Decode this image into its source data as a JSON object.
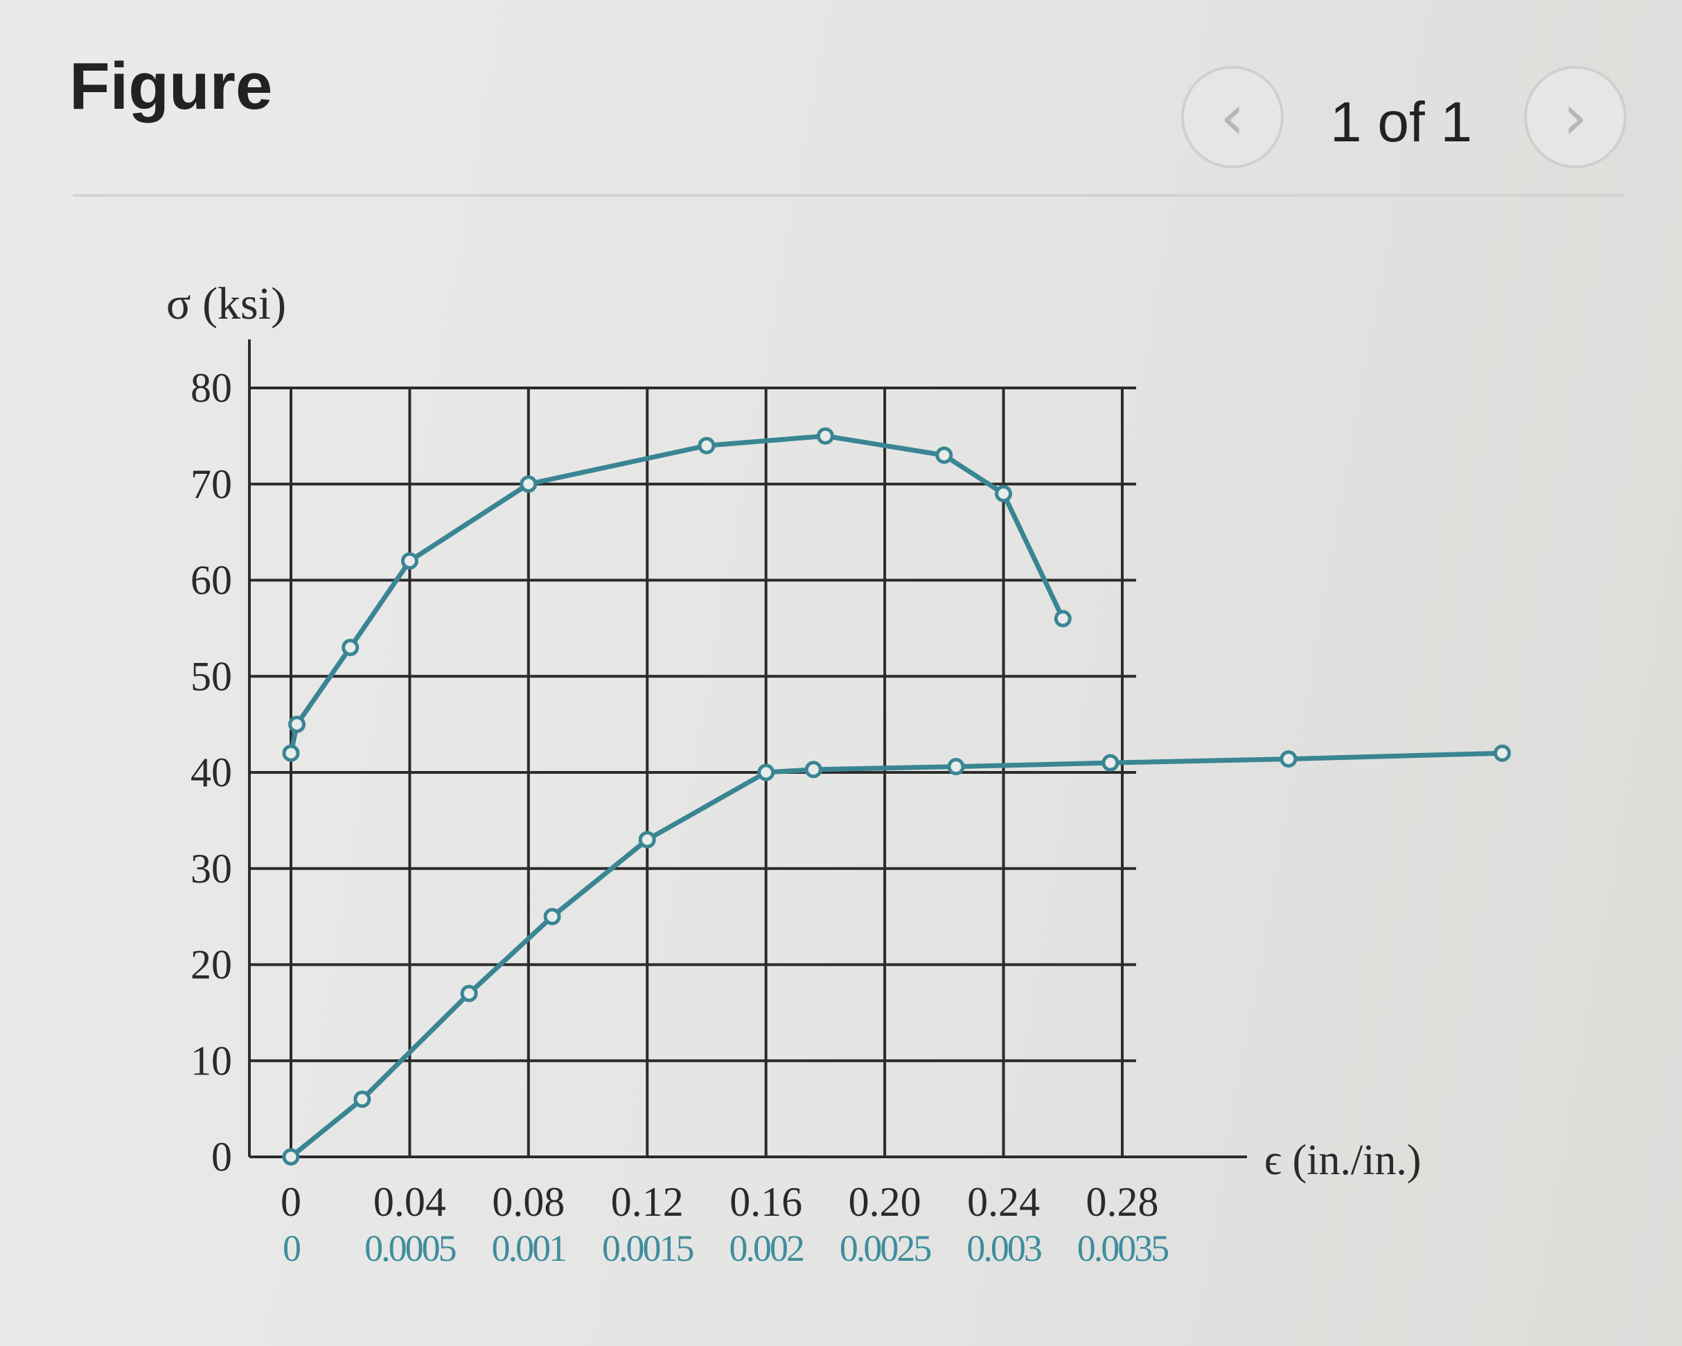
{
  "header": {
    "title": "Figure",
    "page_indicator": "1 of 1",
    "prev_icon": "chevron-left-icon",
    "next_icon": "chevron-right-icon"
  },
  "colors": {
    "curve": "#3a8593",
    "grid": "#2b2b2b",
    "secondary_tick": "#3f8d9c"
  },
  "chart_data": {
    "type": "line",
    "ylabel": "σ (ksi)",
    "xlabel": "ϵ (in./in.)",
    "ylim": [
      0,
      80
    ],
    "yticks": [
      "80",
      "70",
      "60",
      "50",
      "40",
      "30",
      "20",
      "10",
      "0"
    ],
    "xlim_top_axis": [
      0,
      0.28
    ],
    "xticks_top": [
      "0",
      "0.04",
      "0.08",
      "0.12",
      "0.16",
      "0.20",
      "0.24",
      "0.28"
    ],
    "xlim_bottom_axis": [
      0,
      0.0035
    ],
    "xticks_bottom": [
      "0",
      "0.0005",
      "0.001",
      "0.0015",
      "0.002",
      "0.0025",
      "0.003",
      "0.0035"
    ],
    "grid": true,
    "series": [
      {
        "axis": "bottom",
        "points": [
          [
            0,
            0
          ],
          [
            0.0003,
            6
          ],
          [
            0.00075,
            17
          ],
          [
            0.0011,
            25
          ],
          [
            0.0015,
            33
          ],
          [
            0.002,
            40
          ],
          [
            0.0022,
            40.3
          ],
          [
            0.0028,
            40.6
          ],
          [
            0.00345,
            41
          ],
          [
            0.0042,
            41.4
          ],
          [
            0.0051,
            42
          ]
        ]
      },
      {
        "axis": "top",
        "points": [
          [
            0,
            42
          ],
          [
            0.002,
            45
          ],
          [
            0.02,
            53
          ],
          [
            0.04,
            62
          ],
          [
            0.08,
            70
          ],
          [
            0.14,
            74
          ],
          [
            0.18,
            75
          ],
          [
            0.22,
            73
          ],
          [
            0.24,
            69
          ],
          [
            0.26,
            56
          ]
        ]
      }
    ]
  }
}
